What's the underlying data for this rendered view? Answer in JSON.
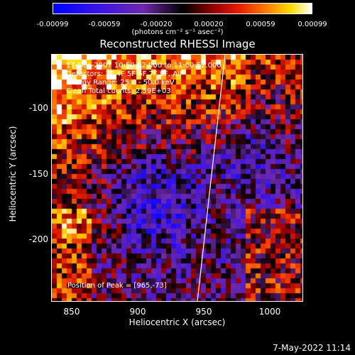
{
  "colorbar": {
    "ticks": [
      "-0.00099",
      "-0.00059",
      "-0.00020",
      "0.00020",
      "0.00059",
      "0.00099"
    ],
    "units": "(photons cm⁻² s⁻¹ asec⁻²)"
  },
  "title": "Reconstructed RHESSI Image",
  "info": {
    "line1": "17-Dec-2007 10:59:52.000 to 11:00:52.000",
    "line2": "Detectors: 3F 4F 5F 6F 7F 8F, All",
    "line3": "Energy Range: 25.0 - 50.0 keV",
    "line4": "Clean     Total counts: 2.59E+03"
  },
  "peak": "Position of Peak = [965,-73]",
  "axes": {
    "xlabel": "Heliocentric X (arcsec)",
    "ylabel": "Heliocentric Y (arcsec)",
    "xticks": [
      "850",
      "900",
      "950",
      "1000"
    ],
    "yticks": [
      "-100",
      "-150",
      "-200"
    ],
    "xrange": [
      837,
      1027
    ],
    "yrange": [
      -248,
      -62
    ]
  },
  "timestamp": "7-May-2022 11:14"
}
